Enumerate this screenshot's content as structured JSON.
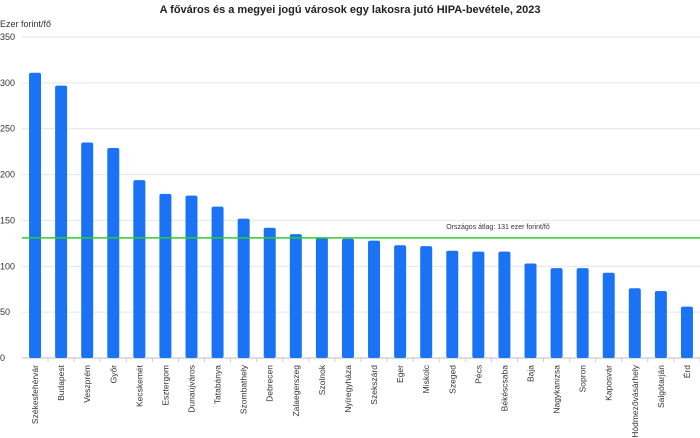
{
  "chart_data": {
    "type": "bar",
    "title": "A főváros és a megyei jogú városok egy lakosra jutó HIPA-bevétele, 2023",
    "ylabel": "Ezer forint/fő",
    "xlabel": "",
    "ylim": [
      0,
      350
    ],
    "yticks": [
      0,
      50,
      100,
      150,
      200,
      250,
      300,
      350
    ],
    "grid": true,
    "bar_color": "#1a73f5",
    "categories": [
      "Székesfehérvár",
      "Budapest",
      "Veszprém",
      "Győr",
      "Kecskemét",
      "Esztergom",
      "Dunaújváros",
      "Tatabánya",
      "Szombathely",
      "Debrecen",
      "Zalaegerszeg",
      "Szolnok",
      "Nyíregyháza",
      "Szekszárd",
      "Eger",
      "Miskolc",
      "Szeged",
      "Pécs",
      "Békéscsaba",
      "Baja",
      "Nagykanizsa",
      "Sopron",
      "Kaposvár",
      "Hódmezővásárhely",
      "Salgótarján",
      "Érd"
    ],
    "values": [
      311,
      297,
      235,
      229,
      194,
      179,
      177,
      165,
      152,
      142,
      135,
      131,
      130,
      128,
      123,
      122,
      117,
      116,
      116,
      103,
      98,
      98,
      93,
      76,
      73,
      56
    ],
    "reference_line": {
      "value": 131,
      "label": "Országos átlag: 131 ezer forint/fő",
      "color": "#2ecc2e"
    }
  }
}
